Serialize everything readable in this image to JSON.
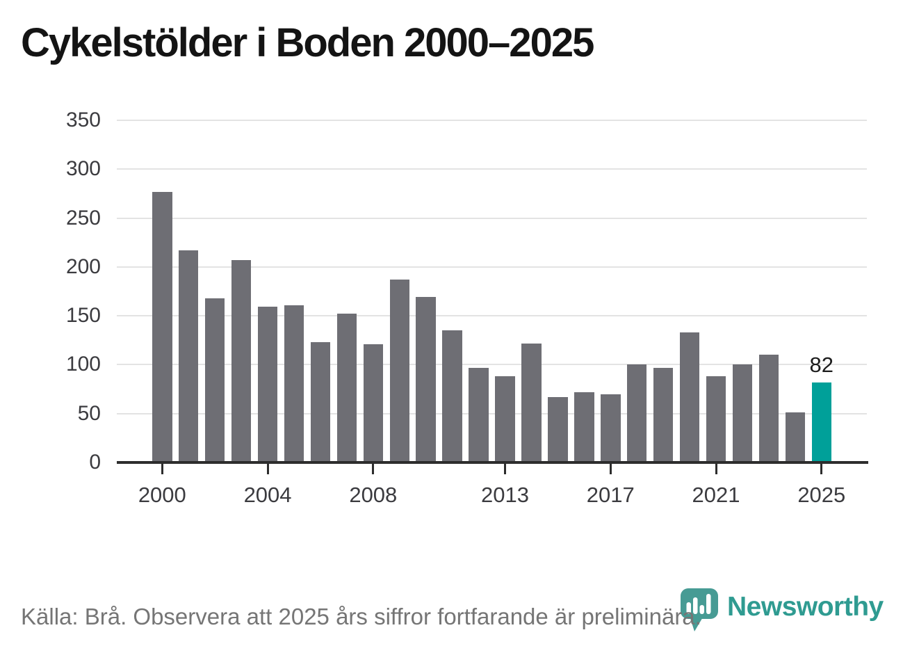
{
  "title": "Cykelstölder i Boden 2000–2025",
  "footer": {
    "source_note": "Källa: Brå. Observera att 2025 års siffror fortfarande är preliminära."
  },
  "branding": {
    "name": "Newsworthy",
    "logo_color": "#479b94",
    "wordmark_color": "#2f9b91"
  },
  "chart_data": {
    "type": "bar",
    "title": "Cykelstölder i Boden 2000–2025",
    "x": [
      2000,
      2001,
      2002,
      2003,
      2004,
      2005,
      2006,
      2007,
      2008,
      2009,
      2010,
      2011,
      2012,
      2013,
      2014,
      2015,
      2016,
      2017,
      2018,
      2019,
      2020,
      2021,
      2022,
      2023,
      2024,
      2025
    ],
    "values": [
      277,
      217,
      168,
      207,
      159,
      161,
      123,
      152,
      121,
      187,
      169,
      135,
      97,
      88,
      122,
      67,
      72,
      70,
      100,
      97,
      133,
      88,
      100,
      110,
      51,
      82
    ],
    "highlight_index": 25,
    "highlight_label": "82",
    "bar_color": "#6e6e74",
    "highlight_color": "#00a099",
    "yticks": [
      0,
      50,
      100,
      150,
      200,
      250,
      300,
      350
    ],
    "xtick_years": [
      2000,
      2004,
      2008,
      2013,
      2017,
      2021,
      2025
    ],
    "ylim": [
      0,
      350
    ],
    "xlabel": "",
    "ylabel": "",
    "grid": "horizontal",
    "legend": "none"
  }
}
